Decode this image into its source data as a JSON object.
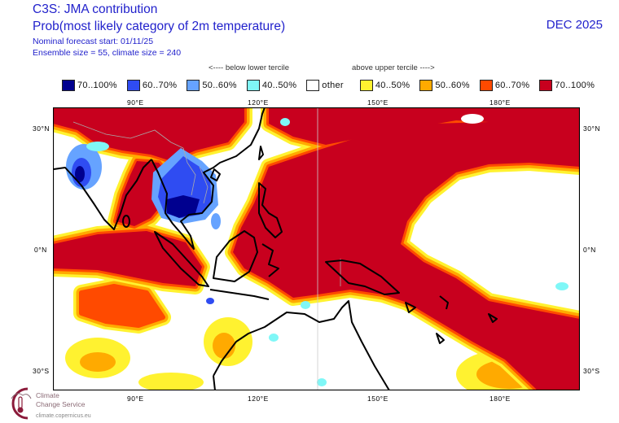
{
  "header": {
    "title": "C3S: JMA contribution",
    "subtitle": "Prob(most likely category of 2m temperature)",
    "forecast_start": "Nominal forecast start: 01/11/25",
    "ensemble": "Ensemble size = 55, climate size = 240",
    "valid_month": "DEC 2025"
  },
  "legend": {
    "below_label": "<---- below lower tercile",
    "above_label": "above upper tercile ---->",
    "items": [
      {
        "label": "70..100%",
        "color": "#00008f"
      },
      {
        "label": "60..70%",
        "color": "#2f4cf2"
      },
      {
        "label": "50..60%",
        "color": "#66a3ff"
      },
      {
        "label": "40..50%",
        "color": "#7ff7f7"
      },
      {
        "label": "other",
        "color": "#ffffff"
      },
      {
        "label": "40..50%",
        "color": "#fff230"
      },
      {
        "label": "50..60%",
        "color": "#ffaa00"
      },
      {
        "label": "60..70%",
        "color": "#ff4a00"
      },
      {
        "label": "70..100%",
        "color": "#c8001e"
      }
    ]
  },
  "axes": {
    "lon_labels": [
      "90°E",
      "120°E",
      "150°E",
      "180°E"
    ],
    "lat_labels": [
      "30°N",
      "0°N",
      "30°S"
    ]
  },
  "logo": {
    "name_line1": "Climate",
    "name_line2": "Change Service",
    "url": "climate.copernicus.eu"
  }
}
